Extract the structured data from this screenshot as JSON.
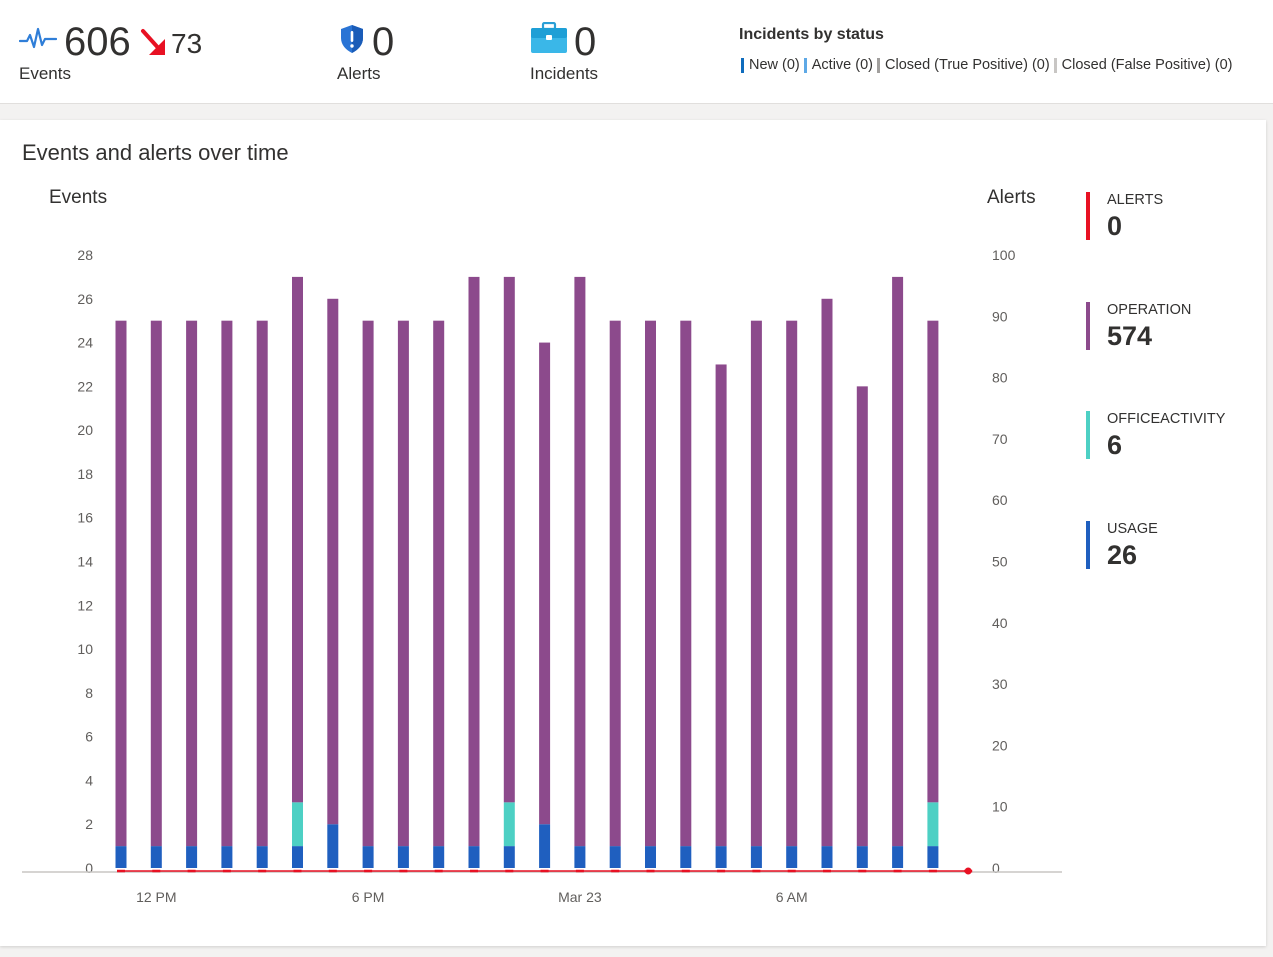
{
  "kpis": {
    "events": {
      "value": "606",
      "delta": "73",
      "label": "Events"
    },
    "alerts": {
      "value": "0",
      "label": "Alerts"
    },
    "incidents": {
      "value": "0",
      "label": "Incidents"
    }
  },
  "incidents_by_status": {
    "title": "Incidents by status",
    "items": [
      {
        "label": "New (0)",
        "color": "#0f6cbd"
      },
      {
        "label": "Active (0)",
        "color": "#5ea9e6"
      },
      {
        "label": "Closed (True Positive) (0)",
        "color": "#a19f9d"
      },
      {
        "label": "Closed (False Positive) (0)",
        "color": "#c8c6c4"
      }
    ]
  },
  "panel": {
    "title": "Events and alerts over time"
  },
  "legend": [
    {
      "name": "ALERTS",
      "value": "0",
      "color": "#e81123"
    },
    {
      "name": "OPERATION",
      "value": "574",
      "color": "#8c4a8c"
    },
    {
      "name": "OFFICEACTIVITY",
      "value": "6",
      "color": "#4dd0c4"
    },
    {
      "name": "USAGE",
      "value": "26",
      "color": "#1f5fbf"
    }
  ],
  "chart_data": {
    "type": "bar",
    "stacked": true,
    "ylabel_left": "Events",
    "ylabel_right": "Alerts",
    "ylim_left": [
      0,
      28
    ],
    "ylim_right": [
      0,
      100
    ],
    "y_ticks_left": [
      "0",
      "2",
      "4",
      "6",
      "8",
      "10",
      "12",
      "14",
      "16",
      "18",
      "20",
      "22",
      "24",
      "26",
      "28"
    ],
    "y_ticks_right": [
      "0",
      "10",
      "20",
      "30",
      "40",
      "50",
      "60",
      "70",
      "80",
      "90",
      "100"
    ],
    "x_tick_labels": [
      "12 PM",
      "6 PM",
      "Mar 23",
      "6 AM"
    ],
    "x_tick_bar_index": [
      1,
      7,
      13,
      19
    ],
    "grid": false,
    "series": [
      {
        "name": "USAGE",
        "color": "#1f5fbf",
        "values": [
          1,
          1,
          1,
          1,
          1,
          1,
          2,
          1,
          1,
          1,
          1,
          1,
          2,
          1,
          1,
          1,
          1,
          1,
          1,
          1,
          1,
          1,
          1,
          1
        ]
      },
      {
        "name": "OFFICEACTIVITY",
        "color": "#4dd0c4",
        "values": [
          0,
          0,
          0,
          0,
          0,
          2,
          0,
          0,
          0,
          0,
          0,
          2,
          0,
          0,
          0,
          0,
          0,
          0,
          0,
          0,
          0,
          0,
          0,
          2
        ]
      },
      {
        "name": "OPERATION",
        "color": "#8c4a8c",
        "values": [
          24,
          24,
          24,
          24,
          24,
          24,
          24,
          24,
          24,
          24,
          26,
          24,
          22,
          26,
          24,
          24,
          24,
          22,
          24,
          24,
          25,
          21,
          26,
          22
        ]
      }
    ],
    "alerts_series": {
      "name": "ALERTS",
      "color": "#e81123",
      "values": [
        0,
        0,
        0,
        0,
        0,
        0,
        0,
        0,
        0,
        0,
        0,
        0,
        0,
        0,
        0,
        0,
        0,
        0,
        0,
        0,
        0,
        0,
        0,
        0,
        0
      ]
    }
  }
}
